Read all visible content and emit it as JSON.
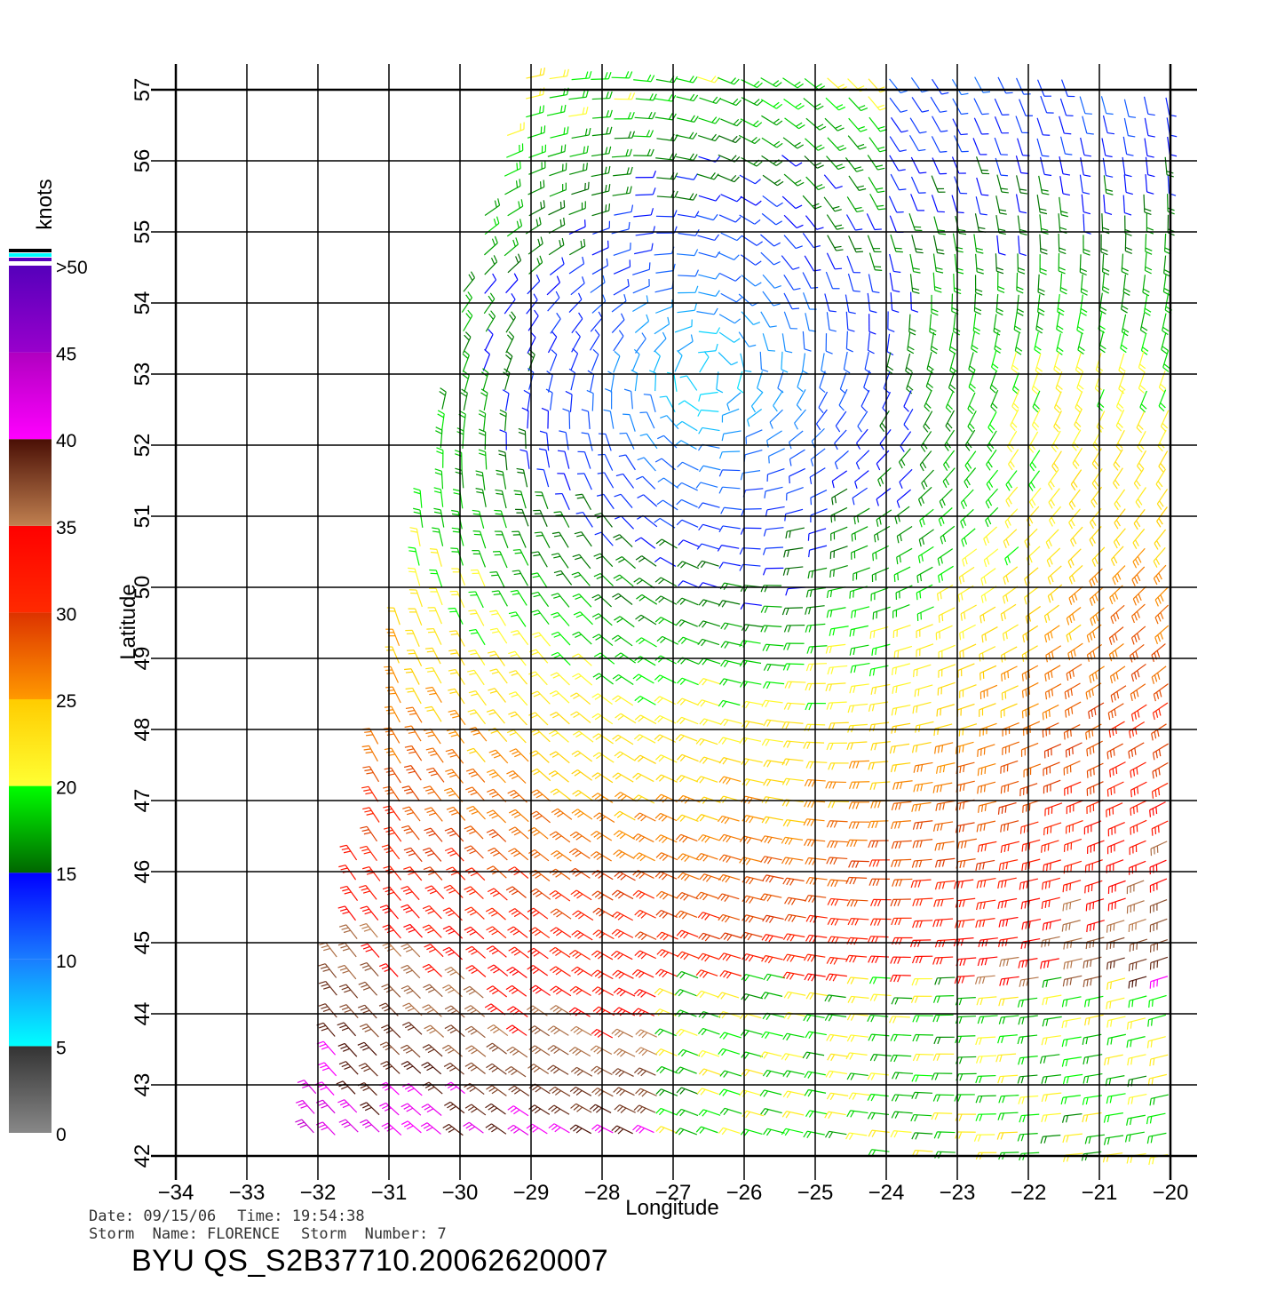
{
  "map": {
    "xlabel": "Longitude",
    "ylabel": "Latitude",
    "lon_ticks": [
      "−34",
      "−33",
      "−32",
      "−31",
      "−30",
      "−29",
      "−28",
      "−27",
      "−26",
      "−25",
      "−24",
      "−23",
      "−22",
      "−21",
      "−20"
    ],
    "lat_ticks": [
      "42",
      "43",
      "44",
      "45",
      "46",
      "47",
      "48",
      "49",
      "50",
      "51",
      "52",
      "53",
      "54",
      "55",
      "56",
      "57"
    ],
    "lon_range": [
      -34,
      -20
    ],
    "lat_range": [
      42,
      57
    ],
    "storm_center": {
      "lon": -26.5,
      "lat": 53.0
    },
    "inner_radius_deg": 2.6,
    "max_radius_deg": 11.0
  },
  "colorbar": {
    "unit": "knots",
    "labels": [
      {
        "value": 0,
        "text": "0"
      },
      {
        "value": 5,
        "text": "5"
      },
      {
        "value": 10,
        "text": "10"
      },
      {
        "value": 15,
        "text": "15"
      },
      {
        "value": 20,
        "text": "20"
      },
      {
        "value": 25,
        "text": "25"
      },
      {
        "value": 30,
        "text": "30"
      },
      {
        "value": 35,
        "text": "35"
      },
      {
        "value": 40,
        "text": "40"
      },
      {
        "value": 45,
        "text": "45"
      },
      {
        "value": 50,
        "text": ">50"
      }
    ],
    "segments": [
      {
        "from": 0,
        "to": 5,
        "top": "#333333",
        "bottom": "#888888"
      },
      {
        "from": 5,
        "to": 10,
        "top": "#1a7dff",
        "bottom": "#00ffff"
      },
      {
        "from": 10,
        "to": 15,
        "top": "#0000ff",
        "bottom": "#1a7dff"
      },
      {
        "from": 15,
        "to": 20,
        "top": "#00ff00",
        "bottom": "#006600"
      },
      {
        "from": 20,
        "to": 25,
        "top": "#ffcc00",
        "bottom": "#ffff33"
      },
      {
        "from": 25,
        "to": 30,
        "top": "#dd3300",
        "bottom": "#ff9900"
      },
      {
        "from": 30,
        "to": 35,
        "top": "#ff0000",
        "bottom": "#ff2a00"
      },
      {
        "from": 35,
        "to": 40,
        "top": "#4a0f05",
        "bottom": "#c08050"
      },
      {
        "from": 40,
        "to": 45,
        "top": "#b000c0",
        "bottom": "#ff00ff"
      },
      {
        "from": 45,
        "to": 50,
        "top": "#5500bb",
        "bottom": "#9900cc"
      }
    ],
    "over_swatches": [
      "#000000",
      "#00ffff",
      "#5500bb"
    ]
  },
  "info": {
    "date": "Date: 09/15/06",
    "time": "Time: 19:54:38",
    "storm_name": "Storm  Name: FLORENCE",
    "storm_number": "Storm  Number: 7",
    "product": "BYU  QS_S2B37710.20062620007"
  }
}
